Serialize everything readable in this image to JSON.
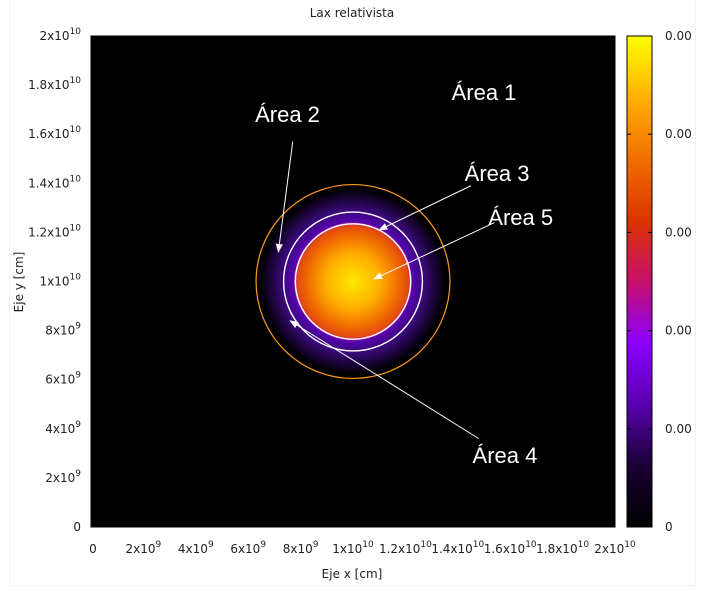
{
  "chart_data": {
    "type": "heatmap",
    "title": "Lax relativista",
    "xlabel": "Eje x [cm]",
    "ylabel": "Eje y [cm]",
    "xlim": [
      0,
      20000000000.0
    ],
    "ylim": [
      0,
      20000000000.0
    ],
    "x_ticks": [
      {
        "v": 0,
        "base": "0",
        "exp": ""
      },
      {
        "v": 2000000000.0,
        "base": "2x10",
        "exp": "9"
      },
      {
        "v": 4000000000.0,
        "base": "4x10",
        "exp": "9"
      },
      {
        "v": 6000000000.0,
        "base": "6x10",
        "exp": "9"
      },
      {
        "v": 8000000000.0,
        "base": "8x10",
        "exp": "9"
      },
      {
        "v": 10000000000.0,
        "base": "1x10",
        "exp": "10"
      },
      {
        "v": 12000000000.0,
        "base": "1.2x10",
        "exp": "10"
      },
      {
        "v": 14000000000.0,
        "base": "1.4x10",
        "exp": "10"
      },
      {
        "v": 16000000000.0,
        "base": "1.6x10",
        "exp": "10"
      },
      {
        "v": 18000000000.0,
        "base": "1.8x10",
        "exp": "10"
      },
      {
        "v": 20000000000.0,
        "base": "2x10",
        "exp": "10"
      }
    ],
    "y_ticks": [
      {
        "v": 0,
        "base": "0",
        "exp": ""
      },
      {
        "v": 2000000000.0,
        "base": "2x10",
        "exp": "9"
      },
      {
        "v": 4000000000.0,
        "base": "4x10",
        "exp": "9"
      },
      {
        "v": 6000000000.0,
        "base": "6x10",
        "exp": "9"
      },
      {
        "v": 8000000000.0,
        "base": "8x10",
        "exp": "9"
      },
      {
        "v": 10000000000.0,
        "base": "1x10",
        "exp": "10"
      },
      {
        "v": 12000000000.0,
        "base": "1.2x10",
        "exp": "10"
      },
      {
        "v": 14000000000.0,
        "base": "1.4x10",
        "exp": "10"
      },
      {
        "v": 16000000000.0,
        "base": "1.6x10",
        "exp": "10"
      },
      {
        "v": 18000000000.0,
        "base": "1.8x10",
        "exp": "10"
      },
      {
        "v": 20000000000.0,
        "base": "2x10",
        "exp": "10"
      }
    ],
    "colorbar": {
      "labels": [
        "0",
        "0.00",
        "0.00",
        "0.00",
        "0.00",
        "0.00"
      ],
      "colors": [
        "#000000",
        "#1a0033",
        "#5a00b0",
        "#8a00ff",
        "#c8106a",
        "#dd3300",
        "#f07000",
        "#ffb000",
        "#ffff00"
      ]
    },
    "disk": {
      "center": [
        10000000000.0,
        10000000000.0
      ],
      "bright_radius": 2250000000.0,
      "glow_radius": 3600000000.0,
      "ring_radii": [
        2200000000.0,
        2650000000.0,
        3700000000.0
      ],
      "ring_colors": [
        "#ffffff",
        "#ffffff",
        "#ff9a20"
      ]
    },
    "annotations": [
      {
        "text": "Área 1",
        "pos": [
          15000000000.0,
          17400000000.0
        ],
        "arrow_to": null
      },
      {
        "text": "Área 2",
        "pos": [
          7500000000.0,
          16500000000.0
        ],
        "arrow_from": [
          7700000000.0,
          15700000000.0
        ],
        "arrow_to": [
          7150000000.0,
          11200000000.0
        ]
      },
      {
        "text": "Área 3",
        "pos": [
          15500000000.0,
          14100000000.0
        ],
        "arrow_from": [
          14500000000.0,
          13900000000.0
        ],
        "arrow_to": [
          11000000000.0,
          12100000000.0
        ]
      },
      {
        "text": "Área 5",
        "pos": [
          16400000000.0,
          12300000000.0
        ],
        "arrow_from": [
          15400000000.0,
          12400000000.0
        ],
        "arrow_to": [
          10800000000.0,
          10100000000.0
        ]
      },
      {
        "text": "Área 4",
        "pos": [
          15800000000.0,
          2600000000.0
        ],
        "arrow_from": [
          14800000000.0,
          3600000000.0
        ],
        "arrow_to": [
          7600000000.0,
          8400000000.0
        ]
      }
    ]
  }
}
